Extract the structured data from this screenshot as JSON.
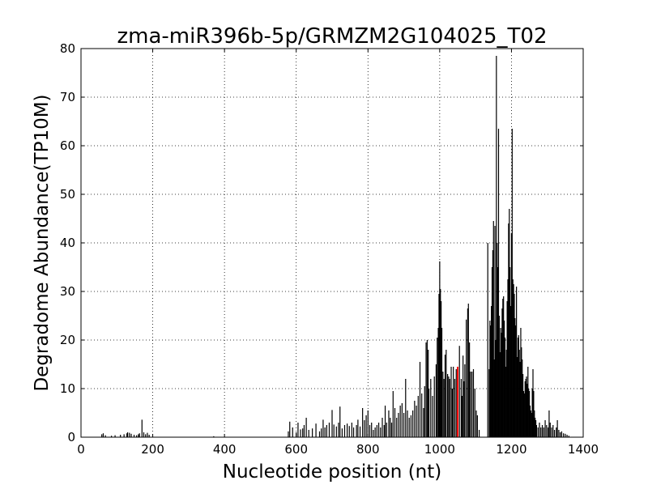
{
  "chart_data": {
    "type": "bar",
    "title": "zma-miR396b-5p/GRMZM2G104025_T02",
    "xlabel": "Nucleotide position (nt)",
    "ylabel": "Degradome Abundance(TP10M)",
    "xlim": [
      0,
      1400
    ],
    "ylim": [
      0,
      80
    ],
    "xticks": [
      0,
      200,
      400,
      600,
      800,
      1000,
      1200,
      1400
    ],
    "yticks": [
      0,
      10,
      20,
      30,
      40,
      50,
      60,
      70,
      80
    ],
    "grid": true,
    "series": [
      {
        "color": "#000000",
        "points": [
          [
            58,
            0.6
          ],
          [
            62,
            0.8
          ],
          [
            68,
            0.4
          ],
          [
            85,
            0.3
          ],
          [
            95,
            0.4
          ],
          [
            110,
            0.5
          ],
          [
            120,
            0.6
          ],
          [
            128,
            0.8
          ],
          [
            130,
            1.0
          ],
          [
            135,
            0.9
          ],
          [
            140,
            0.7
          ],
          [
            148,
            0.5
          ],
          [
            155,
            0.4
          ],
          [
            160,
            0.6
          ],
          [
            163,
            0.8
          ],
          [
            170,
            3.6
          ],
          [
            175,
            1.0
          ],
          [
            180,
            0.6
          ],
          [
            185,
            0.9
          ],
          [
            190,
            0.5
          ],
          [
            370,
            0.2
          ],
          [
            578,
            1.2
          ],
          [
            582,
            3.2
          ],
          [
            590,
            2.0
          ],
          [
            600,
            1.0
          ],
          [
            605,
            3.0
          ],
          [
            612,
            1.6
          ],
          [
            618,
            1.8
          ],
          [
            622,
            2.5
          ],
          [
            628,
            4.0
          ],
          [
            635,
            1.5
          ],
          [
            645,
            1.8
          ],
          [
            655,
            2.8
          ],
          [
            665,
            1.2
          ],
          [
            670,
            1.8
          ],
          [
            675,
            3.6
          ],
          [
            680,
            2.0
          ],
          [
            685,
            2.5
          ],
          [
            692,
            3.0
          ],
          [
            700,
            5.6
          ],
          [
            705,
            2.6
          ],
          [
            712,
            2.2
          ],
          [
            718,
            3.0
          ],
          [
            722,
            6.3
          ],
          [
            728,
            1.8
          ],
          [
            735,
            2.5
          ],
          [
            742,
            2.8
          ],
          [
            748,
            2.3
          ],
          [
            755,
            3.0
          ],
          [
            760,
            2.0
          ],
          [
            768,
            2.5
          ],
          [
            772,
            3.6
          ],
          [
            778,
            2.2
          ],
          [
            785,
            6.0
          ],
          [
            790,
            3.5
          ],
          [
            795,
            4.5
          ],
          [
            800,
            5.5
          ],
          [
            805,
            2.5
          ],
          [
            810,
            3.0
          ],
          [
            815,
            1.5
          ],
          [
            820,
            2.0
          ],
          [
            825,
            2.5
          ],
          [
            830,
            3.0
          ],
          [
            835,
            2.0
          ],
          [
            840,
            4.0
          ],
          [
            845,
            2.5
          ],
          [
            848,
            6.5
          ],
          [
            852,
            3.0
          ],
          [
            858,
            5.5
          ],
          [
            862,
            4.0
          ],
          [
            866,
            3.0
          ],
          [
            870,
            9.5
          ],
          [
            875,
            6.0
          ],
          [
            880,
            4.0
          ],
          [
            885,
            5.0
          ],
          [
            890,
            6.5
          ],
          [
            895,
            7.0
          ],
          [
            900,
            5.0
          ],
          [
            905,
            12.0
          ],
          [
            910,
            5.5
          ],
          [
            915,
            4.0
          ],
          [
            920,
            4.5
          ],
          [
            925,
            5.5
          ],
          [
            930,
            7.5
          ],
          [
            935,
            6.5
          ],
          [
            940,
            8.5
          ],
          [
            945,
            15.5
          ],
          [
            950,
            9.0
          ],
          [
            955,
            6.0
          ],
          [
            958,
            10.5
          ],
          [
            962,
            19.5
          ],
          [
            965,
            20.0
          ],
          [
            968,
            18.0
          ],
          [
            970,
            10.0
          ],
          [
            975,
            12.0
          ],
          [
            980,
            8.5
          ],
          [
            985,
            12.5
          ],
          [
            990,
            15.0
          ],
          [
            993,
            20.5
          ],
          [
            996,
            22.5
          ],
          [
            998,
            29.5
          ],
          [
            1000,
            36.2
          ],
          [
            1002,
            30.5
          ],
          [
            1004,
            28.0
          ],
          [
            1006,
            22.5
          ],
          [
            1009,
            13.5
          ],
          [
            1012,
            12.0
          ],
          [
            1015,
            17.0
          ],
          [
            1018,
            18.0
          ],
          [
            1022,
            13.0
          ],
          [
            1025,
            12.5
          ],
          [
            1028,
            12.0
          ],
          [
            1032,
            14.5
          ],
          [
            1035,
            10.0
          ],
          [
            1038,
            14.5
          ],
          [
            1042,
            12.0
          ],
          [
            1046,
            14.0
          ],
          [
            1055,
            18.8
          ],
          [
            1060,
            12.0
          ],
          [
            1062,
            8.5
          ],
          [
            1065,
            16.8
          ],
          [
            1068,
            11.5
          ],
          [
            1070,
            15.0
          ],
          [
            1074,
            24.2
          ],
          [
            1078,
            26.5
          ],
          [
            1080,
            27.5
          ],
          [
            1083,
            19.5
          ],
          [
            1086,
            13.5
          ],
          [
            1090,
            13.5
          ],
          [
            1094,
            14.0
          ],
          [
            1098,
            10.0
          ],
          [
            1102,
            5.5
          ],
          [
            1105,
            4.5
          ],
          [
            1110,
            1.5
          ],
          [
            1134,
            40.0
          ],
          [
            1138,
            14.0
          ],
          [
            1140,
            24.0
          ],
          [
            1142,
            23.0
          ],
          [
            1144,
            27.0
          ],
          [
            1146,
            35.0
          ],
          [
            1148,
            38.5
          ],
          [
            1150,
            44.5
          ],
          [
            1152,
            16.0
          ],
          [
            1154,
            43.5
          ],
          [
            1156,
            20.0
          ],
          [
            1158,
            78.5
          ],
          [
            1160,
            40.0
          ],
          [
            1162,
            35.0
          ],
          [
            1164,
            63.5
          ],
          [
            1166,
            25.0
          ],
          [
            1168,
            17.5
          ],
          [
            1170,
            22.5
          ],
          [
            1172,
            21.5
          ],
          [
            1174,
            26.5
          ],
          [
            1176,
            28.5
          ],
          [
            1178,
            29.0
          ],
          [
            1180,
            24.0
          ],
          [
            1182,
            20.5
          ],
          [
            1184,
            14.5
          ],
          [
            1186,
            18.0
          ],
          [
            1188,
            28.0
          ],
          [
            1190,
            32.5
          ],
          [
            1192,
            44.0
          ],
          [
            1194,
            47.0
          ],
          [
            1196,
            35.0
          ],
          [
            1198,
            27.0
          ],
          [
            1200,
            42.0
          ],
          [
            1202,
            63.5
          ],
          [
            1204,
            32.5
          ],
          [
            1206,
            31.5
          ],
          [
            1208,
            29.5
          ],
          [
            1210,
            24.5
          ],
          [
            1212,
            23.0
          ],
          [
            1214,
            31.0
          ],
          [
            1216,
            16.5
          ],
          [
            1218,
            20.5
          ],
          [
            1220,
            21.0
          ],
          [
            1222,
            18.0
          ],
          [
            1224,
            15.5
          ],
          [
            1226,
            22.5
          ],
          [
            1228,
            18.5
          ],
          [
            1230,
            16.0
          ],
          [
            1232,
            13.0
          ],
          [
            1234,
            9.5
          ],
          [
            1236,
            9.0
          ],
          [
            1238,
            11.5
          ],
          [
            1240,
            12.0
          ],
          [
            1242,
            12.5
          ],
          [
            1244,
            11.0
          ],
          [
            1246,
            14.5
          ],
          [
            1248,
            10.0
          ],
          [
            1250,
            9.5
          ],
          [
            1252,
            6.5
          ],
          [
            1254,
            5.5
          ],
          [
            1256,
            5.0
          ],
          [
            1258,
            10.0
          ],
          [
            1260,
            14.0
          ],
          [
            1262,
            9.5
          ],
          [
            1264,
            5.5
          ],
          [
            1266,
            4.0
          ],
          [
            1268,
            3.5
          ],
          [
            1270,
            2.5
          ],
          [
            1274,
            2.0
          ],
          [
            1278,
            3.0
          ],
          [
            1282,
            2.0
          ],
          [
            1286,
            2.5
          ],
          [
            1290,
            2.0
          ],
          [
            1294,
            3.5
          ],
          [
            1298,
            2.5
          ],
          [
            1302,
            2.0
          ],
          [
            1305,
            5.5
          ],
          [
            1308,
            3.0
          ],
          [
            1312,
            2.0
          ],
          [
            1316,
            2.5
          ],
          [
            1320,
            1.5
          ],
          [
            1325,
            2.0
          ],
          [
            1328,
            3.5
          ],
          [
            1332,
            1.5
          ],
          [
            1336,
            1.0
          ],
          [
            1340,
            1.2
          ],
          [
            1345,
            0.8
          ],
          [
            1350,
            0.7
          ],
          [
            1355,
            0.5
          ],
          [
            1360,
            0.3
          ]
        ]
      },
      {
        "color": "#ff0000",
        "points": [
          [
            1050,
            14.5
          ]
        ]
      }
    ]
  }
}
